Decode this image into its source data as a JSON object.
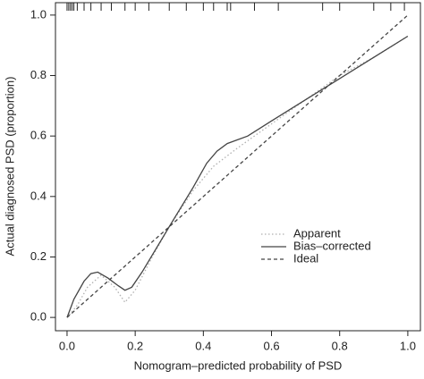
{
  "chart_data": {
    "type": "line",
    "xlabel": "Nomogram–predicted probability of PSD",
    "ylabel": "Actual diagnosed PSD (proportion)",
    "xlim": [
      -0.034,
      1.037
    ],
    "ylim": [
      -0.044,
      1.041
    ],
    "xticks": [
      {
        "value": 0,
        "label": "0.0"
      },
      0.2,
      0.4,
      0.6,
      0.8,
      {
        "value": 1,
        "label": "1.0"
      }
    ],
    "yticks": [
      {
        "value": 0,
        "label": "0.0"
      },
      0.2,
      0.4,
      0.6,
      0.8,
      {
        "value": 1,
        "label": "1.0"
      }
    ],
    "legend": "right",
    "rug": [
      0.0,
      0.005,
      0.01,
      0.015,
      0.02,
      0.03,
      0.05,
      0.07,
      0.1,
      0.13,
      0.17,
      0.2,
      0.24,
      0.3,
      0.35,
      0.4,
      0.43,
      0.47,
      0.48,
      0.55,
      0.62,
      0.75,
      0.8,
      0.9,
      0.95,
      0.99
    ],
    "series": [
      {
        "name": "Apparent",
        "color": "#b0b0b0",
        "linestyle": "dotted",
        "x": [
          0,
          0.03,
          0.06,
          0.1,
          0.14,
          0.17,
          0.2,
          0.25,
          0.3,
          0.37,
          0.43,
          0.5,
          0.6,
          0.7,
          0.8,
          0.9,
          1.0
        ],
        "values": [
          0,
          0.04,
          0.1,
          0.14,
          0.1,
          0.05,
          0.09,
          0.2,
          0.3,
          0.42,
          0.5,
          0.56,
          0.64,
          0.72,
          0.8,
          0.86,
          0.93
        ]
      },
      {
        "name": "Bias–corrected",
        "color": "#444444",
        "linestyle": "solid",
        "x": [
          0,
          0.02,
          0.05,
          0.07,
          0.09,
          0.12,
          0.15,
          0.17,
          0.19,
          0.22,
          0.3,
          0.37,
          0.41,
          0.44,
          0.47,
          0.53,
          0.6,
          0.7,
          0.8,
          0.9,
          1.0
        ],
        "values": [
          0,
          0.06,
          0.12,
          0.145,
          0.15,
          0.13,
          0.105,
          0.09,
          0.1,
          0.15,
          0.3,
          0.43,
          0.51,
          0.55,
          0.575,
          0.6,
          0.65,
          0.72,
          0.79,
          0.86,
          0.93
        ]
      },
      {
        "name": "Ideal",
        "color": "#444444",
        "linestyle": "dashed",
        "x": [
          0,
          1
        ],
        "values": [
          0,
          1
        ]
      }
    ]
  }
}
